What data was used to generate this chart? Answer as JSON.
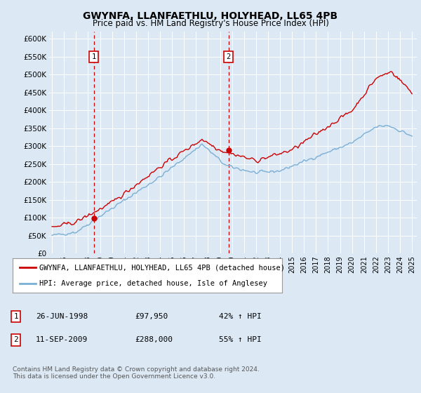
{
  "title": "GWYNFA, LLANFAETHLU, HOLYHEAD, LL65 4PB",
  "subtitle": "Price paid vs. HM Land Registry's House Price Index (HPI)",
  "background_color": "#dce9f5",
  "plot_bg_color": "#dce9f5",
  "red_line_color": "#cc0000",
  "blue_line_color": "#7bafd4",
  "ylim": [
    0,
    620000
  ],
  "yticks": [
    0,
    50000,
    100000,
    150000,
    200000,
    250000,
    300000,
    350000,
    400000,
    450000,
    500000,
    550000,
    600000
  ],
  "ytick_labels": [
    "£0",
    "£50K",
    "£100K",
    "£150K",
    "£200K",
    "£250K",
    "£300K",
    "£350K",
    "£400K",
    "£450K",
    "£500K",
    "£550K",
    "£600K"
  ],
  "marker1_date": 1998.48,
  "marker1_value": 97950,
  "marker2_date": 2009.7,
  "marker2_value": 288000,
  "legend_red": "GWYNFA, LLANFAETHLU, HOLYHEAD, LL65 4PB (detached house)",
  "legend_blue": "HPI: Average price, detached house, Isle of Anglesey",
  "table_row1": [
    "1",
    "26-JUN-1998",
    "£97,950",
    "42% ↑ HPI"
  ],
  "table_row2": [
    "2",
    "11-SEP-2009",
    "£288,000",
    "55% ↑ HPI"
  ],
  "footer": "Contains HM Land Registry data © Crown copyright and database right 2024.\nThis data is licensed under the Open Government Licence v3.0."
}
